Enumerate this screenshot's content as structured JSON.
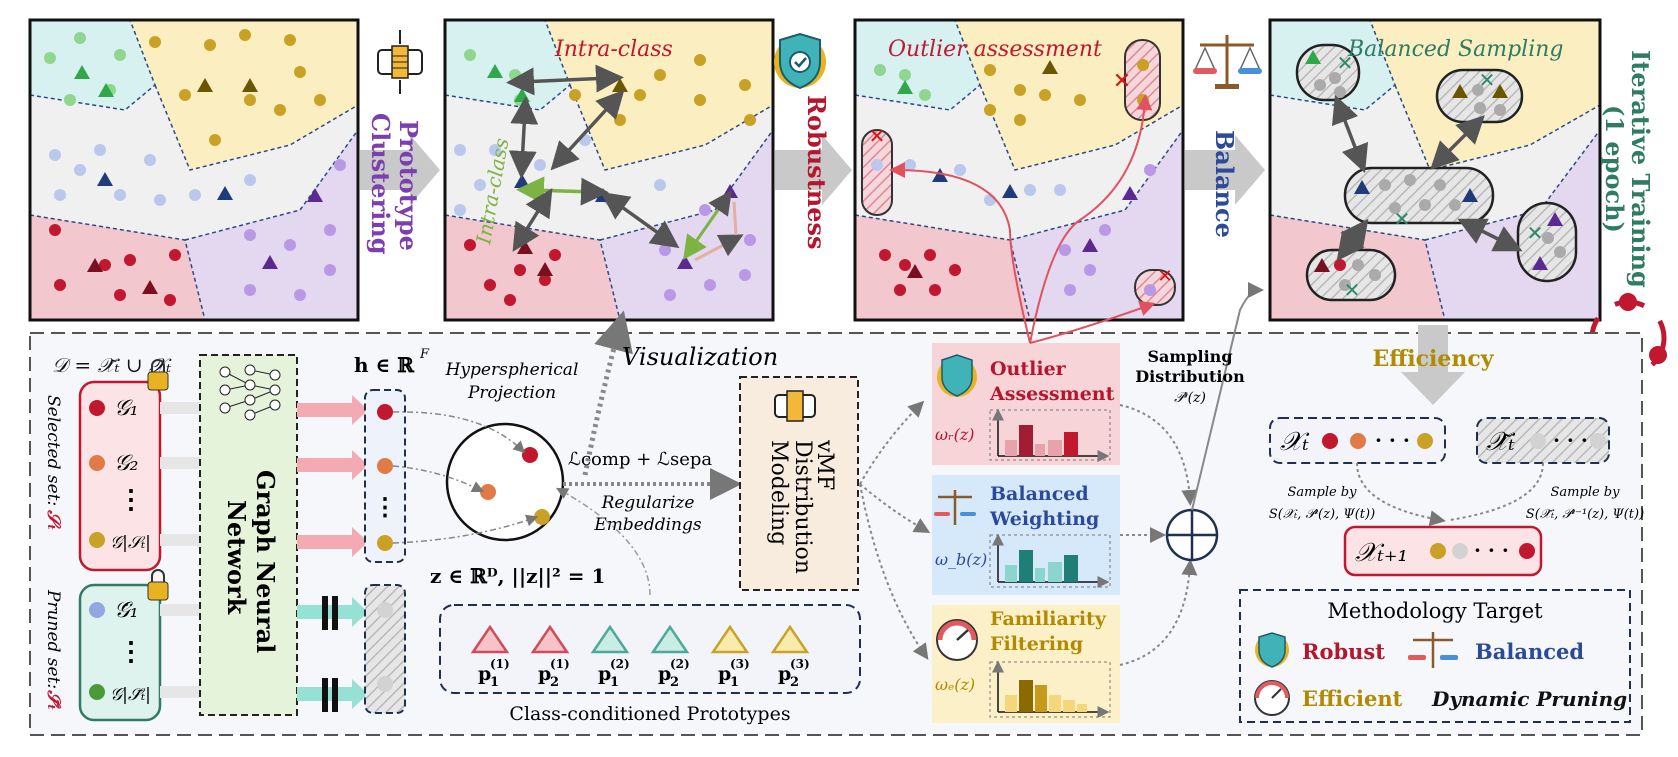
{
  "top_labels": {
    "prototype": "Prototype",
    "clustering": "Clustering",
    "robustness": "Robustness",
    "balance": "Balance",
    "iterative_line1": "Iterative Training",
    "iterative_line2": "(1 epoch)"
  },
  "panel_titles": {
    "intra_class": "Intra-class",
    "intra_class_vertical": "Intra-class",
    "outlier": "Outlier assessment",
    "balanced_sampling": "Balanced Sampling"
  },
  "bottom": {
    "dataset_eq": "𝒟 = 𝒳̃ₜ ∪ 𝒳ₜ",
    "selected_set_label": "Selected set:",
    "selected_set_symbol": "𝒮ₜ",
    "pruned_set_label": "Pruned set:",
    "pruned_set_symbol": "𝒮̃ₜ",
    "graphs_selected": [
      "𝒢₁",
      "𝒢₂",
      "⋮",
      "𝒢|𝒮ₜ|"
    ],
    "graphs_pruned": [
      "𝒢̈₁",
      "⋮",
      "𝒢|𝒮̃ₜ|"
    ],
    "gnn_line1": "Graph Neural",
    "gnn_line2": "Network",
    "h_label": "h ∈ ℝ",
    "h_sup": "F",
    "hyper_line1": "Hyperspherical",
    "hyper_line2": "Projection",
    "z_label": "z ∈ ℝᴰ, ||z||² = 1",
    "visualization": "Visualization",
    "loss": "ℒcomp + ℒsepa",
    "regularize_line1": "Regularize",
    "regularize_line2": "Embeddings",
    "vmf_line1": "vMF",
    "vmf_line2": "Distribution",
    "vmf_line3": "Modeling",
    "prototypes_title": "Class-conditioned Prototypes",
    "prototypes": [
      {
        "label": "p",
        "sub": "1",
        "sup": "(1)",
        "color": "#d24b5a"
      },
      {
        "label": "p",
        "sub": "2",
        "sup": "(1)",
        "color": "#d24b5a"
      },
      {
        "label": "p",
        "sub": "1",
        "sup": "(2)",
        "color": "#4fa89a"
      },
      {
        "label": "p",
        "sub": "2",
        "sup": "(2)",
        "color": "#4fa89a"
      },
      {
        "label": "p",
        "sub": "1",
        "sup": "(3)",
        "color": "#c7a32a"
      },
      {
        "label": "p",
        "sub": "2",
        "sup": "(3)",
        "color": "#c7a32a"
      }
    ],
    "outlier_line1": "Outlier",
    "outlier_line2": "Assessment",
    "omega_r": "ωᵣ(z)",
    "balanced_line1": "Balanced",
    "balanced_line2": "Weighting",
    "omega_b": "ω_b(z)",
    "familiarity_line1": "Familiarity",
    "familiarity_line2": "Filtering",
    "omega_e": "ωₑ(z)",
    "sampling_line1": "Sampling",
    "sampling_line2": "Distribution",
    "sampling_pz": "𝒫ᵗ(z)",
    "efficiency": "Efficiency",
    "xt": "𝒳ₜ",
    "xt_tilde": "𝒳̃ₜ",
    "sample_by_left_line1": "Sample by",
    "sample_by_left_line2": "𝑆(𝒳ₜ, 𝒫ᵗ(z), Ψ(t))",
    "sample_by_right_line1": "Sample by",
    "sample_by_right_line2": "𝑆(𝒳̃ₜ, 𝒫ᵗ⁻¹(z), Ψ(t))",
    "xt1": "𝒳ₜ₊₁",
    "target_title": "Methodology Target",
    "target_robust": "Robust",
    "target_balanced": "Balanced",
    "target_efficient": "Efficient",
    "target_dynamic": "Dynamic Pruning"
  },
  "colors": {
    "red_class": "#c1172f",
    "yellow_class": "#c79a1e",
    "purple_class": "#9a6fd0",
    "green_class": "#4bb84b",
    "blue_class": "#9fb2e0",
    "robust": "#b5162e",
    "balanced": "#2c4a9a",
    "efficient": "#b08a00"
  }
}
